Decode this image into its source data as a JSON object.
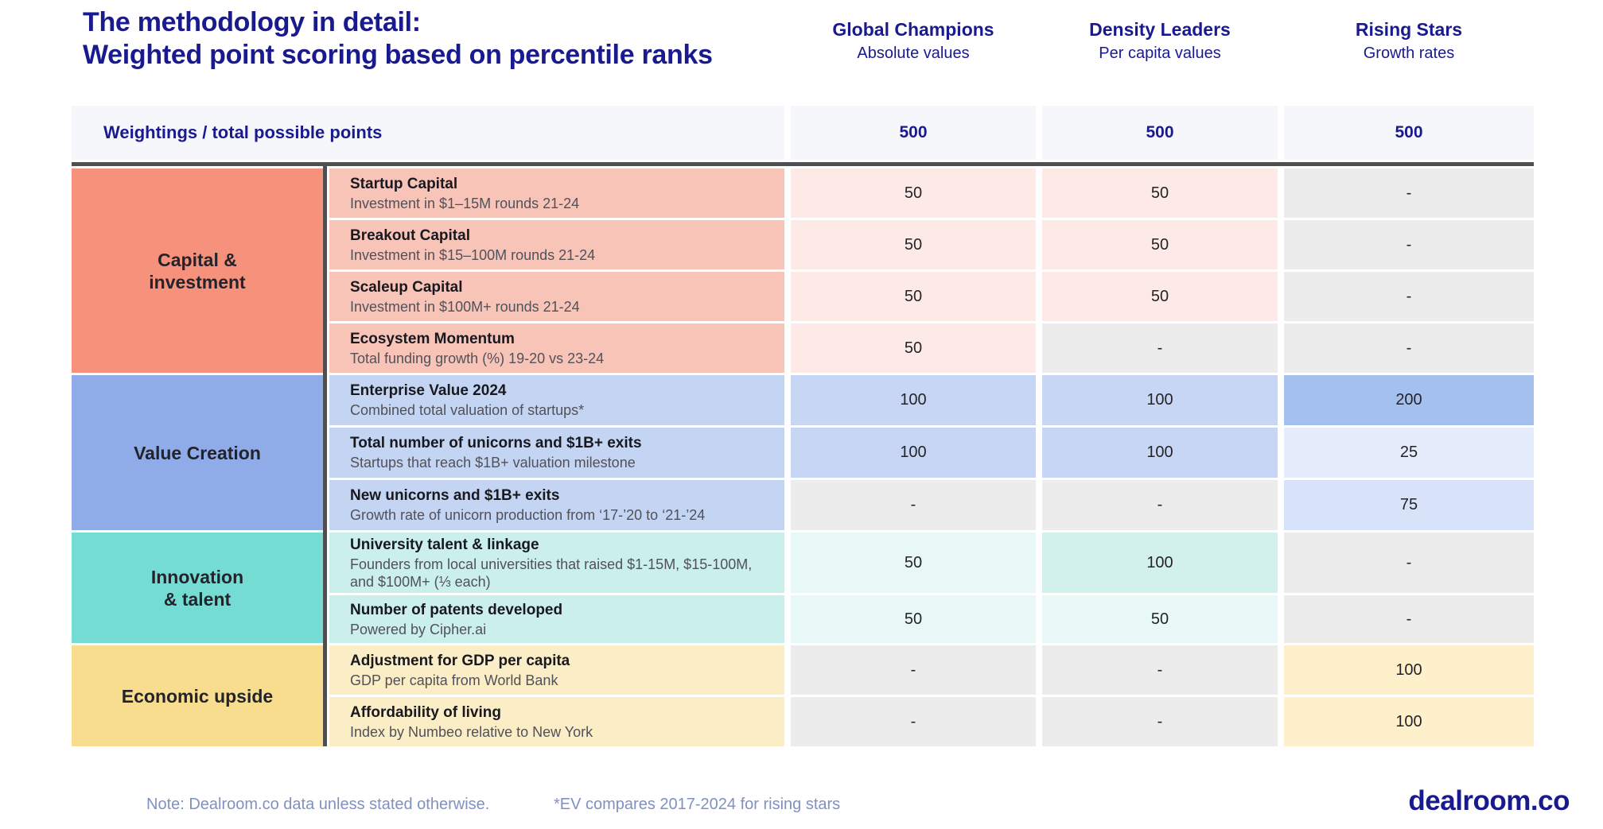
{
  "theme": {
    "navy": "#1a1a8f",
    "muted_note": "#8091c0",
    "divider": "#4f4f4f",
    "weightings_bg": "#f5f7fb",
    "dash_cell_bg": "#ececec"
  },
  "header": {
    "title_line1": "The methodology in detail:",
    "title_line2": "Weighted point scoring based on percentile ranks"
  },
  "columns": [
    {
      "title": "Global Champions",
      "subtitle": "Absolute values"
    },
    {
      "title": "Density Leaders",
      "subtitle": "Per capita values"
    },
    {
      "title": "Rising Stars",
      "subtitle": "Growth rates"
    }
  ],
  "weightings": {
    "label": "Weightings / total possible points",
    "values": [
      "500",
      "500",
      "500"
    ]
  },
  "groups": [
    {
      "name": "Capital &\ninvestment",
      "cat_bg": "#f6917c",
      "row_bg": "#f9c4b8",
      "rows": [
        {
          "title": "Startup Capital",
          "subtitle": "Investment in $1–15M rounds 21-24",
          "values": [
            "50",
            "50",
            "-"
          ],
          "cell_bgs": [
            "#fdeae6",
            "#fdeae6",
            "#ececec"
          ]
        },
        {
          "title": "Breakout Capital",
          "subtitle": "Investment in $15–100M rounds 21-24",
          "values": [
            "50",
            "50",
            "-"
          ],
          "cell_bgs": [
            "#fdeae6",
            "#fdeae6",
            "#ececec"
          ]
        },
        {
          "title": "Scaleup Capital",
          "subtitle": "Investment in $100M+ rounds 21-24",
          "values": [
            "50",
            "50",
            "-"
          ],
          "cell_bgs": [
            "#fdeae6",
            "#fdeae6",
            "#ececec"
          ]
        },
        {
          "title": "Ecosystem Momentum",
          "subtitle": "Total funding growth (%) 19-20 vs 23-24",
          "values": [
            "50",
            "-",
            "-"
          ],
          "cell_bgs": [
            "#fdeae6",
            "#ececec",
            "#ececec"
          ]
        }
      ]
    },
    {
      "name": "Value Creation",
      "cat_bg": "#90ace8",
      "row_bg": "#c4d4f3",
      "rows": [
        {
          "title": "Enterprise Value 2024",
          "subtitle": "Combined total valuation of startups*",
          "values": [
            "100",
            "100",
            "200"
          ],
          "cell_bgs": [
            "#c7d6f4",
            "#c7d6f4",
            "#a4c0ee"
          ]
        },
        {
          "title": "Total number of unicorns and $1B+ exits",
          "subtitle": "Startups that reach $1B+ valuation milestone",
          "values": [
            "100",
            "100",
            "25"
          ],
          "cell_bgs": [
            "#c7d6f4",
            "#c7d6f4",
            "#e5ecfb"
          ]
        },
        {
          "title": "New unicorns and $1B+ exits",
          "subtitle": "Growth rate of unicorn production from ‘17-’20 to ‘21-’24",
          "values": [
            "-",
            "-",
            "75"
          ],
          "cell_bgs": [
            "#ececec",
            "#ececec",
            "#d8e2f8"
          ]
        }
      ]
    },
    {
      "name": "Innovation\n& talent",
      "cat_bg": "#74dcd3",
      "row_bg": "#cbefeb",
      "rows": [
        {
          "title": "University talent & linkage",
          "subtitle": "Founders from local universities that raised $1-15M, $15-100M, and $100M+ (⅓ each)",
          "values": [
            "50",
            "100",
            "-"
          ],
          "cell_bgs": [
            "#e8f8f6",
            "#d3f1ec",
            "#ececec"
          ]
        },
        {
          "title": "Number of patents developed",
          "subtitle": "Powered by Cipher.ai",
          "values": [
            "50",
            "50",
            "-"
          ],
          "cell_bgs": [
            "#e8f8f6",
            "#e8f8f6",
            "#ececec"
          ]
        }
      ]
    },
    {
      "name": "Economic upside",
      "cat_bg": "#f8dd8f",
      "row_bg": "#fbedc5",
      "rows": [
        {
          "title": "Adjustment for GDP per capita",
          "subtitle": "GDP per capita from World Bank",
          "values": [
            "-",
            "-",
            "100"
          ],
          "cell_bgs": [
            "#ececec",
            "#ececec",
            "#fdf0ca"
          ]
        },
        {
          "title": "Affordability of living",
          "subtitle": "Index by Numbeo relative to New York",
          "values": [
            "-",
            "-",
            "100"
          ],
          "cell_bgs": [
            "#ececec",
            "#ececec",
            "#fdf0ca"
          ]
        }
      ]
    }
  ],
  "footer": {
    "note": "Note: Dealroom.co data unless stated otherwise.",
    "ev_note": "*EV compares 2017-2024 for rising stars",
    "logo": "dealroom.co"
  }
}
